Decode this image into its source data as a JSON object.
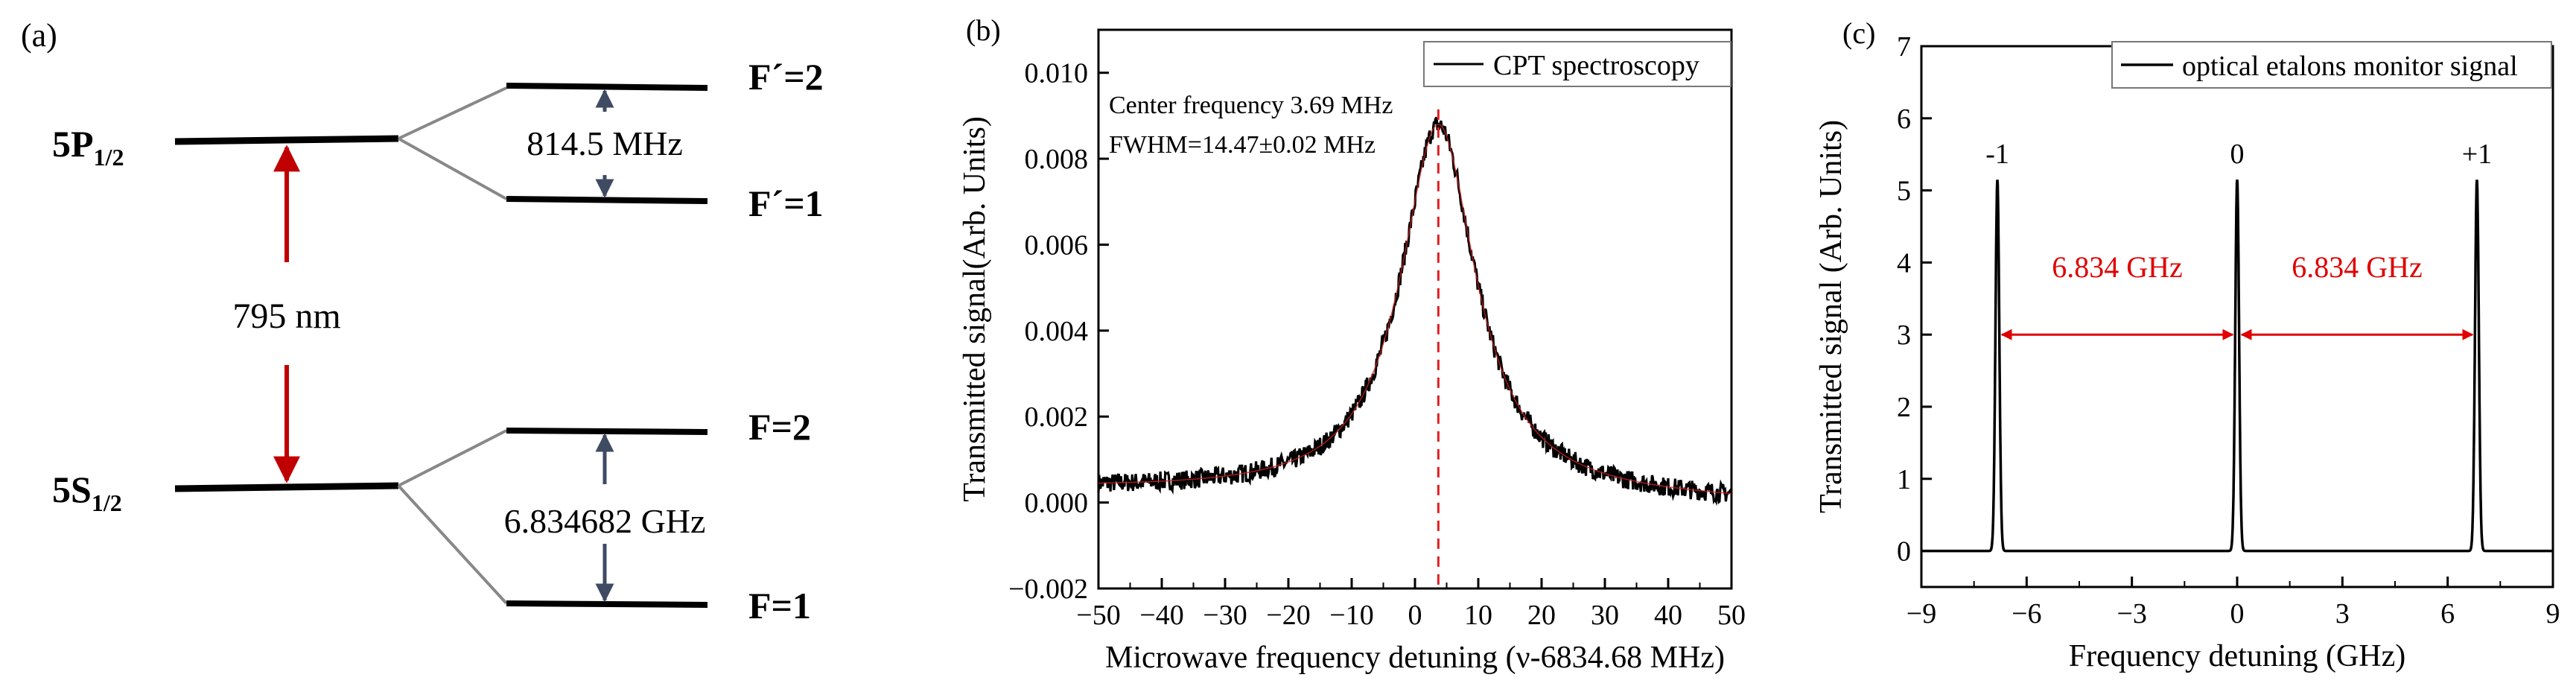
{
  "panel_a": {
    "label": "(a)",
    "upper_state": {
      "main": "5P",
      "sub": "1/2"
    },
    "lower_state": {
      "main": "5S",
      "sub": "1/2"
    },
    "transition_label": "795 nm",
    "upper_levels": [
      {
        "label": "F´=2"
      },
      {
        "label": "F´=1"
      }
    ],
    "upper_splitting": "814.5 MHz",
    "lower_levels": [
      {
        "label": "F=2"
      },
      {
        "label": "F=1"
      }
    ],
    "lower_splitting": "6.834682 GHz",
    "colors": {
      "level": "#000000",
      "laser": "#c00000",
      "split_arrow": "#3f4b63",
      "connector": "#888888"
    }
  },
  "chart_data": [
    {
      "panel_label": "(b)",
      "type": "line",
      "title": "",
      "xlabel": "Microwave frequency detuning (ν-6834.68 MHz)",
      "ylabel": "Transmitted signal(Arb. Units)",
      "xlim": [
        -50,
        50
      ],
      "ylim": [
        -0.002,
        0.011
      ],
      "xticks": [
        -50,
        -40,
        -30,
        -20,
        -10,
        0,
        10,
        20,
        30,
        40,
        50
      ],
      "xtick_labels": [
        "−50",
        "−40",
        "−30",
        "−20",
        "−10",
        "0",
        "10",
        "20",
        "30",
        "40",
        "50"
      ],
      "yticks": [
        -0.002,
        0,
        0.002,
        0.004,
        0.006,
        0.008,
        0.01
      ],
      "ytick_labels": [
        "−0.002",
        "0.000",
        "0.002",
        "0.004",
        "0.006",
        "0.008",
        "0.010"
      ],
      "series": [
        {
          "name": "CPT spectroscopy",
          "color": "#000000",
          "center": 3.69,
          "fwhm": 14.47,
          "peak": 0.0088,
          "baseline_left": 0.0003,
          "baseline_right": 0.0
        }
      ],
      "annotations": {
        "center_text": "Center frequency 3.69 MHz",
        "fwhm_text": "FWHM=14.47±0.02 MHz",
        "center_line_x": 3.69,
        "center_line_color": "#e02020"
      },
      "legend": {
        "position": "top-right",
        "entries": [
          "CPT spectroscopy"
        ]
      },
      "grid": false
    },
    {
      "panel_label": "(c)",
      "type": "line",
      "title": "",
      "xlabel": "Frequency detuning (GHz)",
      "ylabel": "Transmitted  signal (Arb. Units)",
      "xlim": [
        -9,
        9
      ],
      "ylim": [
        -0.5,
        7
      ],
      "xticks": [
        -9,
        -6,
        -3,
        0,
        3,
        6,
        9
      ],
      "xtick_labels": [
        "−9",
        "−6",
        "−3",
        "0",
        "3",
        "6",
        "9"
      ],
      "yticks": [
        0,
        1,
        2,
        3,
        4,
        5,
        6,
        7
      ],
      "ytick_labels": [
        "0",
        "1",
        "2",
        "3",
        "4",
        "5",
        "6",
        "7"
      ],
      "series": [
        {
          "name": "optical etalons monitor signal",
          "color": "#000000",
          "peaks": [
            {
              "x": -6.834,
              "height": 5.15,
              "label": "-1"
            },
            {
              "x": 0,
              "height": 5.15,
              "label": "0"
            },
            {
              "x": 6.834,
              "height": 5.15,
              "label": "+1"
            }
          ],
          "baseline": 0.0,
          "peak_width": 0.14
        }
      ],
      "annotations": {
        "spacing_label_left": "6.834 GHz",
        "spacing_label_right": "6.834 GHz",
        "arrow_y": 3.0,
        "arrow_color": "#e00000"
      },
      "legend": {
        "position": "top-right",
        "entries": [
          "optical etalons monitor signal"
        ]
      },
      "grid": false
    }
  ]
}
